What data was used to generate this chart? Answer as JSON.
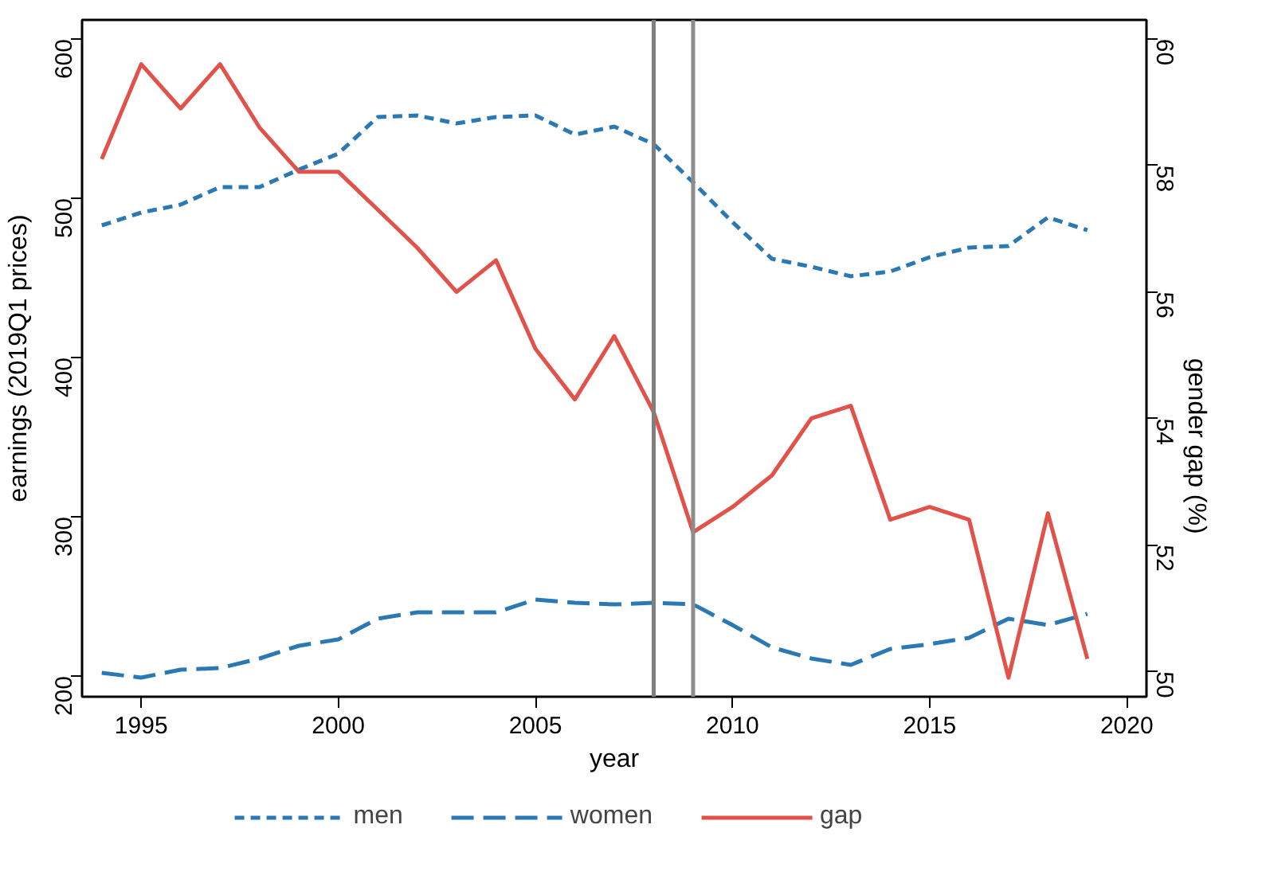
{
  "chart_data": {
    "type": "line",
    "xlabel": "year",
    "ylabel": "earnings (2019Q1 prices)",
    "y2label": "gender gap (%)",
    "x": [
      1994,
      1995,
      1996,
      1997,
      1998,
      1999,
      2000,
      2001,
      2002,
      2003,
      2004,
      2005,
      2006,
      2007,
      2008,
      2009,
      2010,
      2011,
      2012,
      2013,
      2014,
      2015,
      2016,
      2017,
      2018,
      2019
    ],
    "series": [
      {
        "name": "men",
        "color": "#2a78b4",
        "line_style": "dashed",
        "values": [
          483,
          491,
          496,
          507,
          507,
          518,
          528,
          551,
          552,
          547,
          551,
          552,
          540,
          545,
          534,
          510,
          485,
          462,
          457,
          451,
          454,
          463,
          469,
          470,
          488,
          480
        ]
      },
      {
        "name": "women",
        "color": "#2a78b4",
        "line_style": "dashed",
        "values": [
          202,
          199,
          204,
          205,
          211,
          219,
          223,
          236,
          240,
          240,
          240,
          248,
          246,
          245,
          246,
          245,
          232,
          218,
          211,
          207,
          217,
          220,
          224,
          236,
          232,
          239
        ]
      },
      {
        "name": "gap",
        "color": "#e1524a",
        "line_style": "solid",
        "axis": "y2",
        "values": [
          58.1,
          59.6,
          58.9,
          59.6,
          58.6,
          57.9,
          57.9,
          57.3,
          56.7,
          56.0,
          56.5,
          55.1,
          54.3,
          55.3,
          54.1,
          52.2,
          52.6,
          53.1,
          54.0,
          54.2,
          52.4,
          52.6,
          52.4,
          49.9,
          52.5,
          50.2
        ]
      }
    ],
    "xlim": [
      1993.5,
      2020.5
    ],
    "xticks": [
      1995,
      2000,
      2005,
      2010,
      2015,
      2020
    ],
    "ylim": [
      187,
      612
    ],
    "yticks": [
      200,
      300,
      400,
      500,
      600
    ],
    "y2lim": [
      49.6,
      60.3
    ],
    "y2ticks": [
      50,
      52,
      54,
      56,
      58,
      60
    ],
    "ref_lines": [
      {
        "axis": "x",
        "value": 2008,
        "color": "#7f7f7f"
      },
      {
        "axis": "x",
        "value": 2009,
        "color": "#8c8c8c"
      }
    ],
    "grid": false,
    "legend": "bottom"
  }
}
